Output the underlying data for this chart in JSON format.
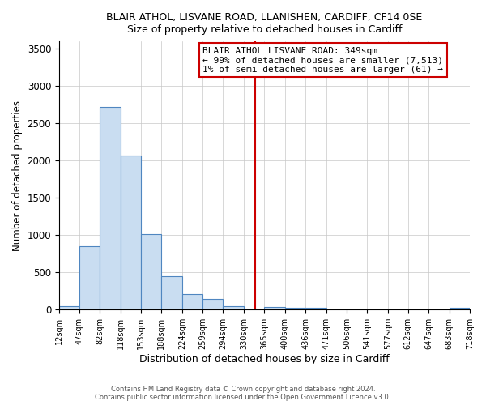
{
  "title": "BLAIR ATHOL, LISVANE ROAD, LLANISHEN, CARDIFF, CF14 0SE",
  "subtitle": "Size of property relative to detached houses in Cardiff",
  "xlabel": "Distribution of detached houses by size in Cardiff",
  "ylabel": "Number of detached properties",
  "bin_edges": [
    12,
    47,
    82,
    118,
    153,
    188,
    224,
    259,
    294,
    330,
    365,
    400,
    436,
    471,
    506,
    541,
    577,
    612,
    647,
    683,
    718
  ],
  "bar_heights": [
    50,
    850,
    2720,
    2070,
    1010,
    450,
    210,
    145,
    50,
    0,
    40,
    20,
    20,
    0,
    0,
    0,
    0,
    0,
    0,
    20
  ],
  "bar_color": "#c9ddf1",
  "bar_edge_color": "#4f86c0",
  "vline_x": 349,
  "vline_color": "#cc0000",
  "annotation_title": "BLAIR ATHOL LISVANE ROAD: 349sqm",
  "annotation_line1": "← 99% of detached houses are smaller (7,513)",
  "annotation_line2": "1% of semi-detached houses are larger (61) →",
  "ylim": [
    0,
    3600
  ],
  "tick_labels": [
    "12sqm",
    "47sqm",
    "82sqm",
    "118sqm",
    "153sqm",
    "188sqm",
    "224sqm",
    "259sqm",
    "294sqm",
    "330sqm",
    "365sqm",
    "400sqm",
    "436sqm",
    "471sqm",
    "506sqm",
    "541sqm",
    "577sqm",
    "612sqm",
    "647sqm",
    "683sqm",
    "718sqm"
  ],
  "footer1": "Contains HM Land Registry data © Crown copyright and database right 2024.",
  "footer2": "Contains public sector information licensed under the Open Government Licence v3.0.",
  "background_color": "#ffffff",
  "grid_color": "#c8c8c8"
}
